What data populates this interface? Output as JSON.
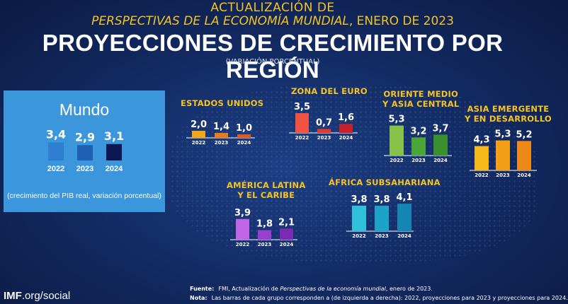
{
  "header": {
    "line1": "ACTUALIZACIÓN DE",
    "line2_italic": "PERSPECTIVAS DE LA ECONOMÍA MUNDIAL",
    "line2_rest": ", ENERO DE 2023",
    "title": "PROYECCIONES DE CRECIMIENTO POR REGIÓN",
    "subtitle": "(VARIACIÓN PORCENTUAL)"
  },
  "colors": {
    "background": "#142d66",
    "accent": "#f5c324",
    "mundo_panel": "#3c96dc"
  },
  "chart_data": [
    {
      "type": "bar",
      "title": "Mundo",
      "note": "(crecimiento del PIB real, variación porcentual)",
      "categories": [
        "2022",
        "2023",
        "2024"
      ],
      "values": [
        3.4,
        2.9,
        3.1
      ],
      "labels": [
        "3,4",
        "2,9",
        "3,1"
      ],
      "colors": [
        "#2e7fd2",
        "#1f60b5",
        "#0b1850"
      ]
    },
    {
      "type": "bar",
      "title": "ESTADOS UNIDOS",
      "categories": [
        "2022",
        "2023",
        "2024"
      ],
      "values": [
        2.0,
        1.4,
        1.0
      ],
      "labels": [
        "2,0",
        "1,4",
        "1,0"
      ],
      "colors": [
        "#f2a516",
        "#eb7a18",
        "#e05a1c"
      ]
    },
    {
      "type": "bar",
      "title": "ZONA DEL EURO",
      "categories": [
        "2022",
        "2023",
        "2024"
      ],
      "values": [
        3.5,
        0.7,
        1.6
      ],
      "labels": [
        "3,5",
        "0,7",
        "1,6"
      ],
      "colors": [
        "#f05441",
        "#e8392f",
        "#c7202b"
      ]
    },
    {
      "type": "bar",
      "title": "ORIENTE MEDIO\nY ASIA CENTRAL",
      "categories": [
        "2022",
        "2023",
        "2024"
      ],
      "values": [
        5.3,
        3.2,
        3.7
      ],
      "labels": [
        "5,3",
        "3,2",
        "3,7"
      ],
      "colors": [
        "#88c24a",
        "#4aa636",
        "#3c8f2e"
      ]
    },
    {
      "type": "bar",
      "title": "ASIA EMERGENTE\nY EN DESARROLLO",
      "categories": [
        "2022",
        "2023",
        "2024"
      ],
      "values": [
        4.3,
        5.3,
        5.2
      ],
      "labels": [
        "4,3",
        "5,3",
        "5,2"
      ],
      "colors": [
        "#f7b81c",
        "#f3a017",
        "#ee8a17"
      ]
    },
    {
      "type": "bar",
      "title": "AMÉRICA LATINA\nY EL CARIBE",
      "categories": [
        "2022",
        "2023",
        "2024"
      ],
      "values": [
        3.9,
        1.8,
        2.1
      ],
      "labels": [
        "3,9",
        "1,8",
        "2,1"
      ],
      "colors": [
        "#c065e6",
        "#9a3fcf",
        "#7a2bb2"
      ]
    },
    {
      "type": "bar",
      "title": "ÁFRICA SUBSAHARIANA",
      "categories": [
        "2022",
        "2023",
        "2024"
      ],
      "values": [
        3.8,
        3.8,
        4.1
      ],
      "labels": [
        "3,8",
        "3,8",
        "4,1"
      ],
      "colors": [
        "#2ec1d9",
        "#1ea3c8",
        "#1586b3"
      ]
    }
  ],
  "footer": {
    "imf_bold": "IMF",
    "imf_rest": ".org/social",
    "source_label": "Fuente:",
    "source_pre": "FMI, Actualización de ",
    "source_italic": "Perspectivas de la economía mundial",
    "source_post": ", enero de 2023.",
    "note_label": "Nota:",
    "note_text": "Las barras de cada grupo corresponden a (de izquierda a derecha): 2022, proyecciones para 2023 y proyecciones para 2024."
  }
}
